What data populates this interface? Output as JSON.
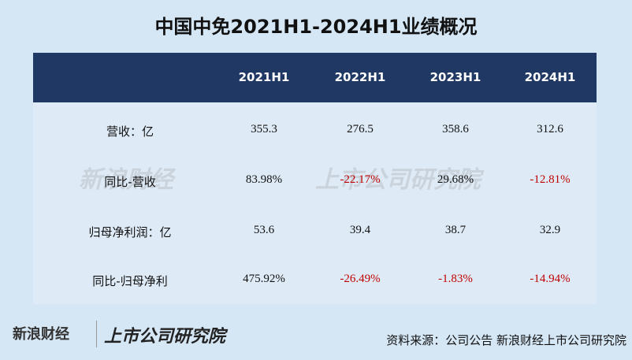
{
  "title": "中国中免2021H1-2024H1业绩概况",
  "table": {
    "header": [
      "2021H1",
      "2022H1",
      "2023H1",
      "2024H1"
    ],
    "rows": [
      [
        "营收：亿",
        "355.3",
        "276.5",
        "358.6",
        "312.6"
      ],
      [
        "同比-营收",
        "83.98%",
        "-22.17%",
        "29.68%",
        "-12.81%"
      ],
      [
        "归母净利润：亿",
        "53.6",
        "39.4",
        "38.7",
        "32.9"
      ],
      [
        "同比-归母净利",
        "475.92%",
        "-26.49%",
        "-1.83%",
        "-14.94%"
      ]
    ]
  },
  "footer": {
    "logo": "新浪财经",
    "institute": "上市公司研究院",
    "source": "资料来源：公司公告 新浪财经上市公司研究院"
  }
}
